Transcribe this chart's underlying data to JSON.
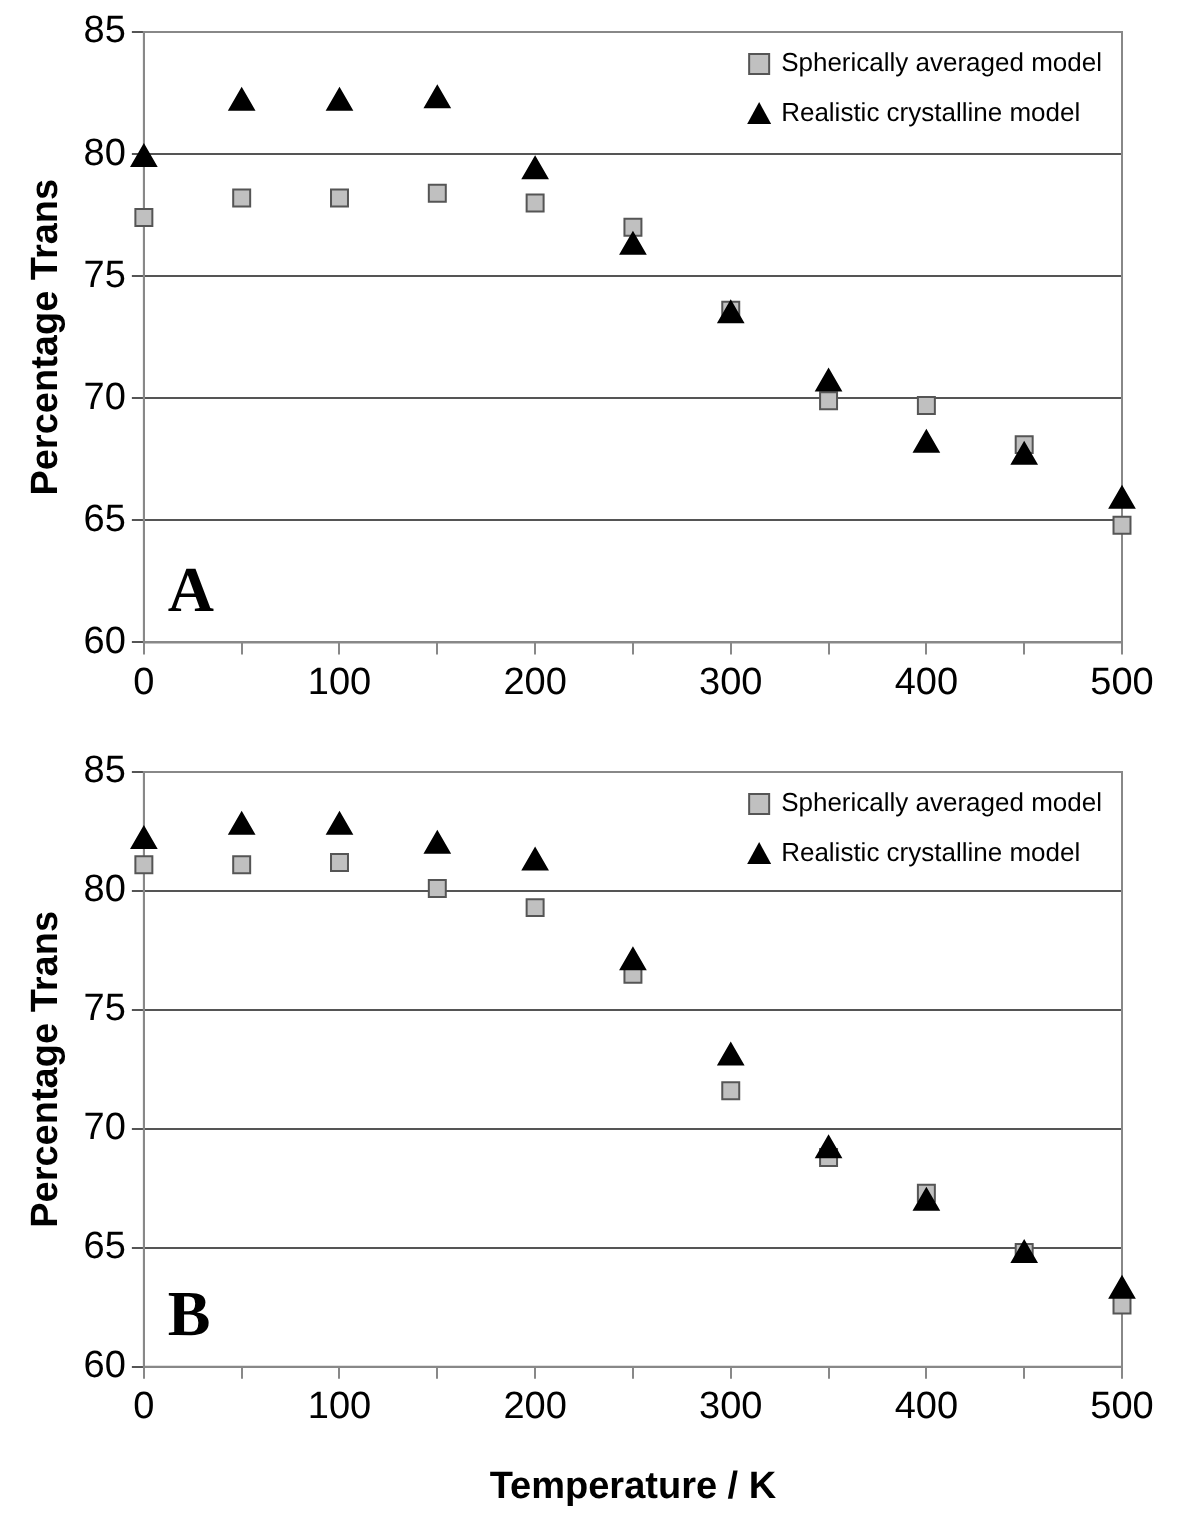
{
  "chart_data": [
    {
      "type": "scatter",
      "ylabel": "Percentage Trans",
      "annotations": [
        "A"
      ],
      "legend": "top right",
      "grid": "y",
      "xlim": [
        0,
        500
      ],
      "xticks": [
        0,
        {
          "value": 50,
          "label": null
        },
        100,
        {
          "value": 150,
          "label": null
        },
        200,
        {
          "value": 250,
          "label": null
        },
        300,
        {
          "value": 350,
          "label": null
        },
        400,
        {
          "value": 450,
          "label": null
        },
        500
      ],
      "ylim": [
        60,
        85
      ],
      "yticks": [
        60,
        65,
        70,
        75,
        80,
        85
      ],
      "x": [
        0,
        50,
        100,
        150,
        200,
        250,
        300,
        350,
        400,
        450,
        500
      ],
      "series": [
        {
          "name": "Spherically averaged model",
          "color": "#c0c0c0",
          "marker": "square",
          "values": [
            77.4,
            78.2,
            78.2,
            78.4,
            78.0,
            77.0,
            73.6,
            69.9,
            69.7,
            68.1,
            64.8
          ]
        },
        {
          "name": "Realistic crystalline model",
          "color": "#000000",
          "marker": "triangle",
          "values": [
            79.8,
            82.1,
            82.1,
            82.2,
            79.3,
            76.2,
            73.4,
            70.6,
            68.1,
            67.6,
            65.8
          ]
        }
      ]
    },
    {
      "type": "scatter",
      "xlabel": "Temperature / K",
      "ylabel": "Percentage Trans",
      "annotations": [
        "B"
      ],
      "legend": "top right",
      "grid": "y",
      "xlim": [
        0,
        500
      ],
      "xticks": [
        0,
        {
          "value": 50,
          "label": null
        },
        100,
        {
          "value": 150,
          "label": null
        },
        200,
        {
          "value": 250,
          "label": null
        },
        300,
        {
          "value": 350,
          "label": null
        },
        400,
        {
          "value": 450,
          "label": null
        },
        500
      ],
      "ylim": [
        60,
        85
      ],
      "yticks": [
        60,
        65,
        70,
        75,
        80,
        85
      ],
      "x": [
        0,
        50,
        100,
        150,
        200,
        250,
        300,
        350,
        400,
        450,
        500
      ],
      "series": [
        {
          "name": "Spherically averaged model",
          "color": "#c0c0c0",
          "marker": "square",
          "values": [
            81.1,
            81.1,
            81.2,
            80.1,
            79.3,
            76.5,
            71.6,
            68.8,
            67.3,
            64.8,
            62.6
          ]
        },
        {
          "name": "Realistic crystalline model",
          "color": "#000000",
          "marker": "triangle",
          "values": [
            82.1,
            82.7,
            82.7,
            81.9,
            81.2,
            77.0,
            73.0,
            69.1,
            66.9,
            64.7,
            63.2
          ]
        }
      ]
    }
  ]
}
